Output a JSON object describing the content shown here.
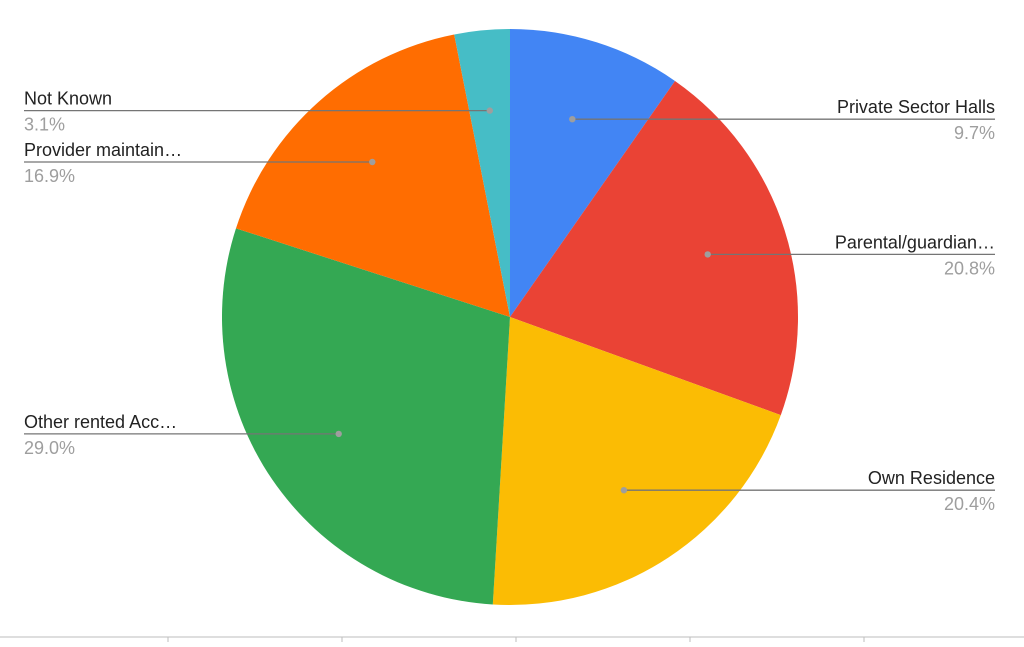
{
  "chart_data": {
    "type": "pie",
    "title": "",
    "start_angle_deg": 0,
    "direction": "clockwise",
    "legend": "none",
    "slices": [
      {
        "label": "Private Sector Halls",
        "value_label": "9.7%",
        "value": 9.7,
        "color": "#4285f4",
        "label_side": "right"
      },
      {
        "label": "Parental/guardian…",
        "value_label": "20.8%",
        "value": 20.8,
        "color": "#ea4335",
        "label_side": "right"
      },
      {
        "label": "Own Residence",
        "value_label": "20.4%",
        "value": 20.4,
        "color": "#fbbc04",
        "label_side": "right"
      },
      {
        "label": "Other rented Acc…",
        "value_label": "29.0%",
        "value": 29.0,
        "color": "#34a853",
        "label_side": "left"
      },
      {
        "label": "Provider maintain…",
        "value_label": "16.9%",
        "value": 16.9,
        "color": "#ff6d01",
        "label_side": "left"
      },
      {
        "label": "Not Known",
        "value_label": "3.1%",
        "value": 3.1,
        "color": "#46bdc6",
        "label_side": "left"
      }
    ]
  },
  "colors": {
    "label_text": "#222222",
    "value_text": "#9e9e9e",
    "leader_line": "#757575",
    "leader_dot": "#9e9e9e",
    "axis_line": "#bdbdbd"
  }
}
